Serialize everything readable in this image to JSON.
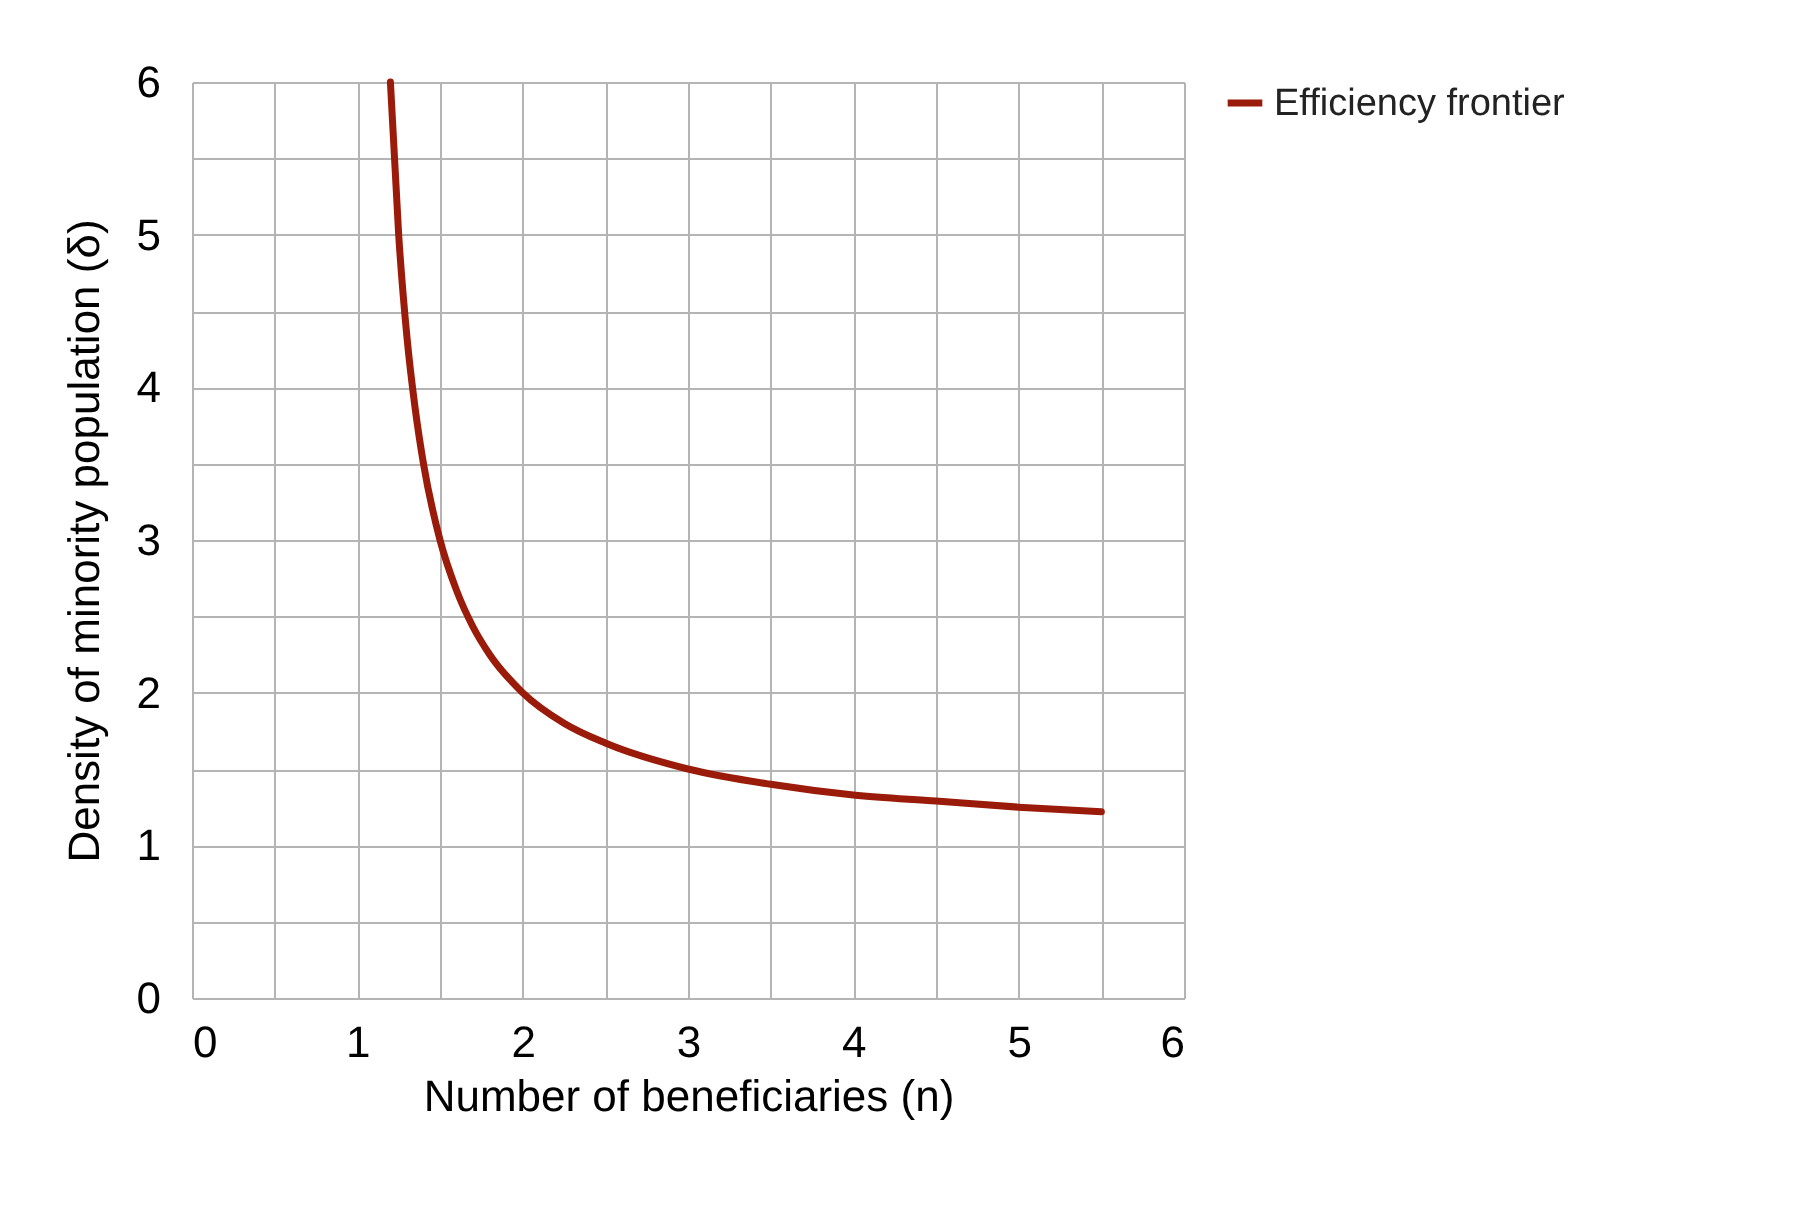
{
  "chart_data": {
    "type": "line",
    "xlabel": "Number of beneficiaries (n)",
    "ylabel": "Density of minority population (δ)",
    "series": [
      {
        "name": "Efficiency frontier",
        "color": "#9b1b0a",
        "x": [
          1.2,
          1.25,
          1.3,
          1.35,
          1.4,
          1.5,
          1.6,
          1.7,
          1.8,
          2,
          2.25,
          2.5,
          3,
          3.5,
          4,
          4.5,
          5,
          5.5
        ],
        "values": [
          6,
          5,
          4.33,
          3.86,
          3.5,
          3,
          2.67,
          2.43,
          2.25,
          2,
          1.8,
          1.67,
          1.5,
          1.4,
          1.33,
          1.29,
          1.25,
          1.22
        ]
      }
    ],
    "xlim": [
      0,
      6
    ],
    "ylim": [
      0,
      6
    ],
    "xticks": [
      0,
      {
        "value": 0.5,
        "label": null
      },
      1,
      {
        "value": 1.5,
        "label": null
      },
      2,
      {
        "value": 2.5,
        "label": null
      },
      3,
      {
        "value": 3.5,
        "label": null
      },
      4,
      {
        "value": 4.5,
        "label": null
      },
      5,
      {
        "value": 5.5,
        "label": null
      },
      6
    ],
    "yticks": [
      0,
      {
        "value": 0.5,
        "label": null
      },
      1,
      {
        "value": 1.5,
        "label": null
      },
      2,
      {
        "value": 2.5,
        "label": null
      },
      3,
      {
        "value": 3.5,
        "label": null
      },
      4,
      {
        "value": 4.5,
        "label": null
      },
      5,
      {
        "value": 5.5,
        "label": null
      },
      6
    ],
    "grid": true,
    "legend": "right",
    "marker": "none",
    "line_style": "solid"
  }
}
